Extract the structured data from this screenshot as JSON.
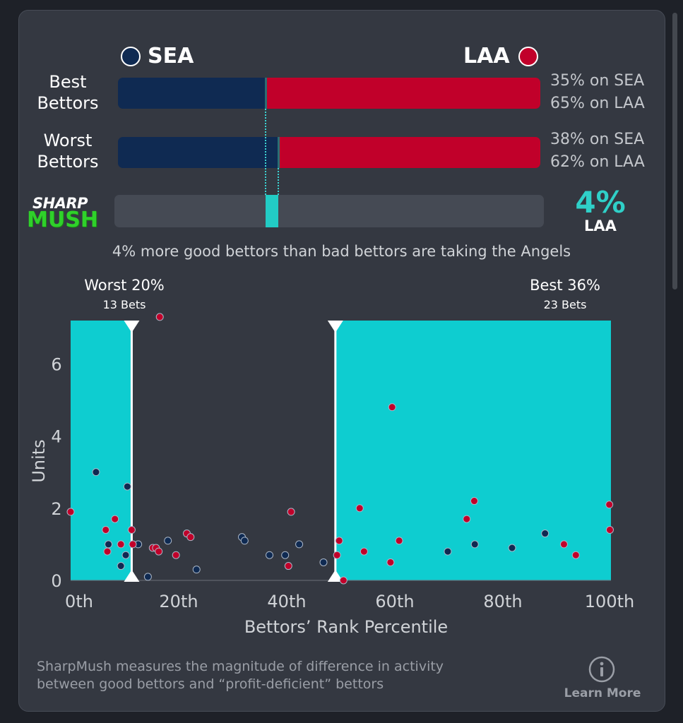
{
  "teams": {
    "away": {
      "abbr": "SEA",
      "color": "#0f2a52"
    },
    "home": {
      "abbr": "LAA",
      "color": "#c1002a"
    }
  },
  "best": {
    "label_line1": "Best",
    "label_line2": "Bettors",
    "away_pct": 35,
    "home_pct": 65,
    "away_text": "35% on SEA",
    "home_text": "65% on LAA"
  },
  "worst": {
    "label_line1": "Worst",
    "label_line2": "Bettors",
    "away_pct": 38,
    "home_pct": 62,
    "away_text": "38% on SEA",
    "home_text": "62% on LAA"
  },
  "sharpmush": {
    "logo_line1": "SHARP",
    "logo_line2": "MUSH",
    "value_text": "4%",
    "team": "LAA",
    "accent": "#22ccc5"
  },
  "summary": "4% more good bettors than bad bettors are taking the Angels",
  "thresholds": {
    "worst": {
      "title": "Worst 20%",
      "sub": "13 Bets"
    },
    "best": {
      "title": "Best 36%",
      "sub": "23 Bets"
    }
  },
  "footer": {
    "line1": "SharpMush measures the magnitude of difference in activity",
    "line2": "between good bettors and “profit-deficient” bettors",
    "learn_more": "Learn More",
    "info_icon": "info-circle-icon"
  },
  "chart_data": {
    "type": "scatter",
    "xlabel": "Bettors’ Rank Percentile",
    "ylabel": "Units",
    "xlim": [
      0,
      100
    ],
    "ylim": [
      0,
      7.2
    ],
    "xticks": [
      0,
      20,
      40,
      60,
      80,
      100
    ],
    "xtick_labels": [
      "0th",
      "20th",
      "40th",
      "60th",
      "80th",
      "100th"
    ],
    "yticks": [
      0,
      2,
      4,
      6
    ],
    "ytick_labels": [
      "0",
      "2",
      "4",
      "6"
    ],
    "shaded_regions": [
      [
        0,
        11.3
      ],
      [
        49,
        100
      ]
    ],
    "threshold_markers": [
      11.3,
      49
    ],
    "shade_color": "#0ecdd0",
    "series": [
      {
        "name": "SEA",
        "color": "#0f2a52",
        "points": [
          [
            4.7,
            3.0
          ],
          [
            7.0,
            1.0
          ],
          [
            9.3,
            0.4
          ],
          [
            10.2,
            0.7
          ],
          [
            10.5,
            2.6
          ],
          [
            12.5,
            1.0
          ],
          [
            14.3,
            0.1
          ],
          [
            18.0,
            1.1
          ],
          [
            23.3,
            0.3
          ],
          [
            31.7,
            1.2
          ],
          [
            32.2,
            1.1
          ],
          [
            36.8,
            0.7
          ],
          [
            39.7,
            0.7
          ],
          [
            42.3,
            1.0
          ],
          [
            46.8,
            0.5
          ],
          [
            69.8,
            0.8
          ],
          [
            74.8,
            1.0
          ],
          [
            81.7,
            0.9
          ],
          [
            87.8,
            1.3
          ]
        ]
      },
      {
        "name": "LAA",
        "color": "#c1002a",
        "points": [
          [
            0.0,
            1.9
          ],
          [
            6.5,
            1.4
          ],
          [
            6.8,
            0.8
          ],
          [
            8.2,
            1.7
          ],
          [
            9.3,
            1.0
          ],
          [
            11.3,
            1.4
          ],
          [
            11.5,
            1.0
          ],
          [
            15.2,
            0.9
          ],
          [
            15.8,
            0.9
          ],
          [
            16.3,
            0.8
          ],
          [
            16.5,
            7.3
          ],
          [
            19.5,
            0.7
          ],
          [
            21.5,
            1.3
          ],
          [
            22.2,
            1.2
          ],
          [
            40.3,
            0.4
          ],
          [
            40.8,
            1.9
          ],
          [
            49.3,
            0.7
          ],
          [
            49.7,
            1.1
          ],
          [
            50.5,
            0.0
          ],
          [
            53.5,
            2.0
          ],
          [
            54.3,
            0.8
          ],
          [
            59.2,
            0.5
          ],
          [
            59.5,
            4.8
          ],
          [
            60.8,
            1.1
          ],
          [
            73.3,
            1.7
          ],
          [
            74.7,
            2.2
          ],
          [
            91.3,
            1.0
          ],
          [
            93.5,
            0.7
          ],
          [
            99.7,
            2.1
          ],
          [
            99.8,
            1.4
          ]
        ]
      }
    ]
  }
}
